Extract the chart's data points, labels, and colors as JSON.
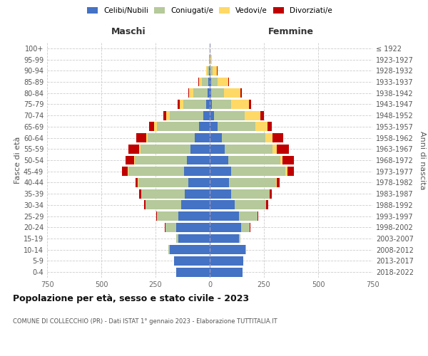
{
  "age_groups": [
    "0-4",
    "5-9",
    "10-14",
    "15-19",
    "20-24",
    "25-29",
    "30-34",
    "35-39",
    "40-44",
    "45-49",
    "50-54",
    "55-59",
    "60-64",
    "65-69",
    "70-74",
    "75-79",
    "80-84",
    "85-89",
    "90-94",
    "95-99",
    "100+"
  ],
  "birth_years": [
    "2018-2022",
    "2013-2017",
    "2008-2012",
    "2003-2007",
    "1998-2002",
    "1993-1997",
    "1988-1992",
    "1983-1987",
    "1978-1982",
    "1973-1977",
    "1968-1972",
    "1963-1967",
    "1958-1962",
    "1953-1957",
    "1948-1952",
    "1943-1947",
    "1938-1942",
    "1933-1937",
    "1928-1932",
    "1923-1927",
    "≤ 1922"
  ],
  "colors": {
    "celibe": "#4472c4",
    "coniugato": "#b5c99a",
    "vedovo": "#ffd966",
    "divorziato": "#c00000"
  },
  "maschi": {
    "celibe": [
      155,
      165,
      185,
      145,
      155,
      145,
      130,
      115,
      100,
      120,
      105,
      90,
      70,
      50,
      30,
      18,
      10,
      5,
      2,
      1,
      0
    ],
    "coniugato": [
      0,
      0,
      5,
      10,
      50,
      100,
      165,
      200,
      230,
      255,
      240,
      230,
      215,
      195,
      155,
      105,
      65,
      30,
      8,
      2,
      0
    ],
    "vedovo": [
      0,
      0,
      0,
      0,
      0,
      0,
      1,
      1,
      2,
      3,
      4,
      5,
      8,
      10,
      15,
      15,
      20,
      15,
      5,
      1,
      0
    ],
    "divorziato": [
      0,
      0,
      0,
      0,
      1,
      3,
      8,
      10,
      10,
      25,
      40,
      50,
      45,
      25,
      15,
      10,
      5,
      2,
      0,
      0,
      0
    ]
  },
  "femmine": {
    "nubile": [
      150,
      155,
      165,
      135,
      145,
      135,
      115,
      100,
      90,
      100,
      85,
      70,
      55,
      35,
      20,
      10,
      5,
      5,
      2,
      1,
      0
    ],
    "coniugata": [
      0,
      0,
      4,
      8,
      40,
      85,
      145,
      175,
      215,
      250,
      240,
      220,
      200,
      175,
      140,
      90,
      60,
      30,
      10,
      2,
      0
    ],
    "vedova": [
      0,
      0,
      0,
      0,
      0,
      0,
      1,
      2,
      4,
      8,
      12,
      20,
      35,
      55,
      75,
      80,
      75,
      50,
      22,
      6,
      0
    ],
    "divorziata": [
      0,
      0,
      0,
      0,
      1,
      3,
      8,
      10,
      15,
      30,
      50,
      55,
      50,
      20,
      15,
      10,
      8,
      3,
      1,
      0,
      0
    ]
  },
  "title": "Popolazione per età, sesso e stato civile - 2023",
  "subtitle": "COMUNE DI COLLECCHIO (PR) - Dati ISTAT 1° gennaio 2023 - Elaborazione TUTTITALIA.IT",
  "xlabel_left": "Maschi",
  "xlabel_right": "Femmine",
  "ylabel_left": "Fasce di età",
  "ylabel_right": "Anni di nascita",
  "xlim": 750,
  "legend_labels": [
    "Celibi/Nubili",
    "Coniugati/e",
    "Vedovi/e",
    "Divorziati/e"
  ]
}
